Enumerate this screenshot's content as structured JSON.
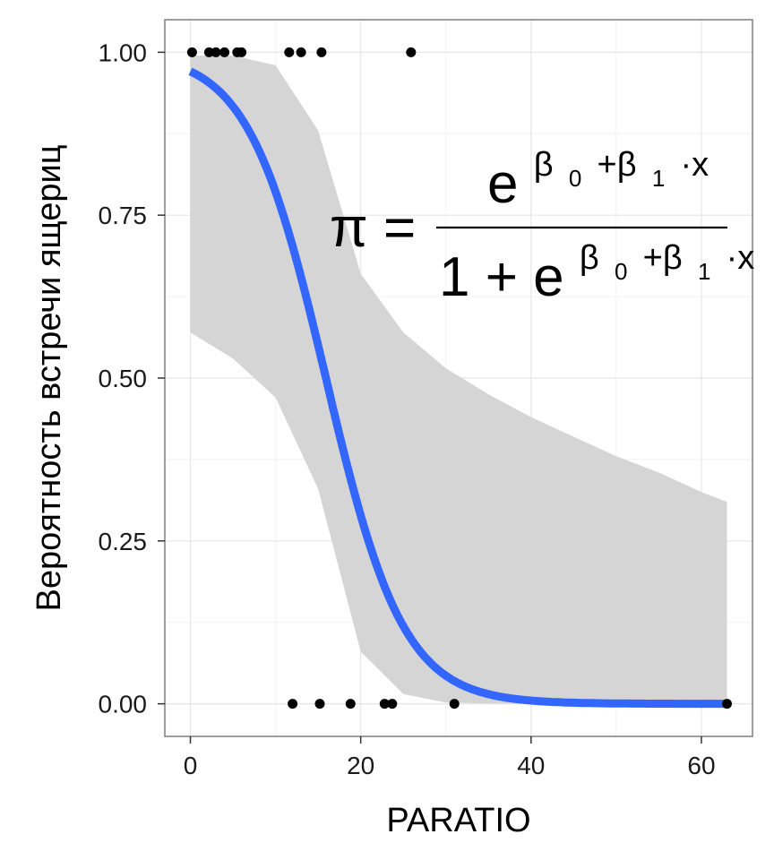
{
  "chart_data": {
    "type": "scatter",
    "title": "",
    "xlabel": "PARATIO",
    "ylabel": "Вероятность встречи ящериц",
    "xlim": [
      -3,
      66
    ],
    "ylim": [
      -0.05,
      1.05
    ],
    "x_ticks": [
      0,
      20,
      40,
      60
    ],
    "x_tick_labels": [
      "0",
      "20",
      "40",
      "60"
    ],
    "y_ticks": [
      0,
      0.25,
      0.5,
      0.75,
      1.0
    ],
    "y_tick_labels": [
      "0.00",
      "0.25",
      "0.50",
      "0.75",
      "1.00"
    ],
    "grid": true,
    "points": {
      "x": [
        0.2,
        2.2,
        3.0,
        4.0,
        5.5,
        6.0,
        11.6,
        13.0,
        15.4,
        25.9,
        12.0,
        15.2,
        18.8,
        22.8,
        23.7,
        31.0,
        63.0
      ],
      "y": [
        1,
        1,
        1,
        1,
        1,
        1,
        1,
        1,
        1,
        1,
        0,
        0,
        0,
        0,
        0,
        0,
        0
      ],
      "color": "#000000"
    },
    "fit_curve": {
      "model": "logistic",
      "beta0": 3.5,
      "beta1": -0.22,
      "x_range": [
        0,
        63
      ],
      "color": "#3366ff"
    },
    "confidence_band": {
      "color": "#d5d5d5",
      "x": [
        0,
        5,
        10,
        15,
        20,
        25,
        30,
        35,
        40,
        45,
        50,
        55,
        60,
        63
      ],
      "lower": [
        0.57,
        0.53,
        0.47,
        0.33,
        0.08,
        0.015,
        0.002,
        0.0005,
        0.0002,
        0.0001,
        0.0,
        0.0,
        0.0,
        0.0
      ],
      "upper": [
        0.995,
        0.995,
        0.98,
        0.88,
        0.66,
        0.57,
        0.515,
        0.475,
        0.44,
        0.41,
        0.38,
        0.355,
        0.325,
        0.31
      ]
    },
    "annotation": {
      "lhs": "π =",
      "numerator_base": "e",
      "denominator_prefix": "1 + e",
      "exponent": [
        "β",
        "0",
        "+β",
        "1",
        "·x"
      ]
    }
  }
}
